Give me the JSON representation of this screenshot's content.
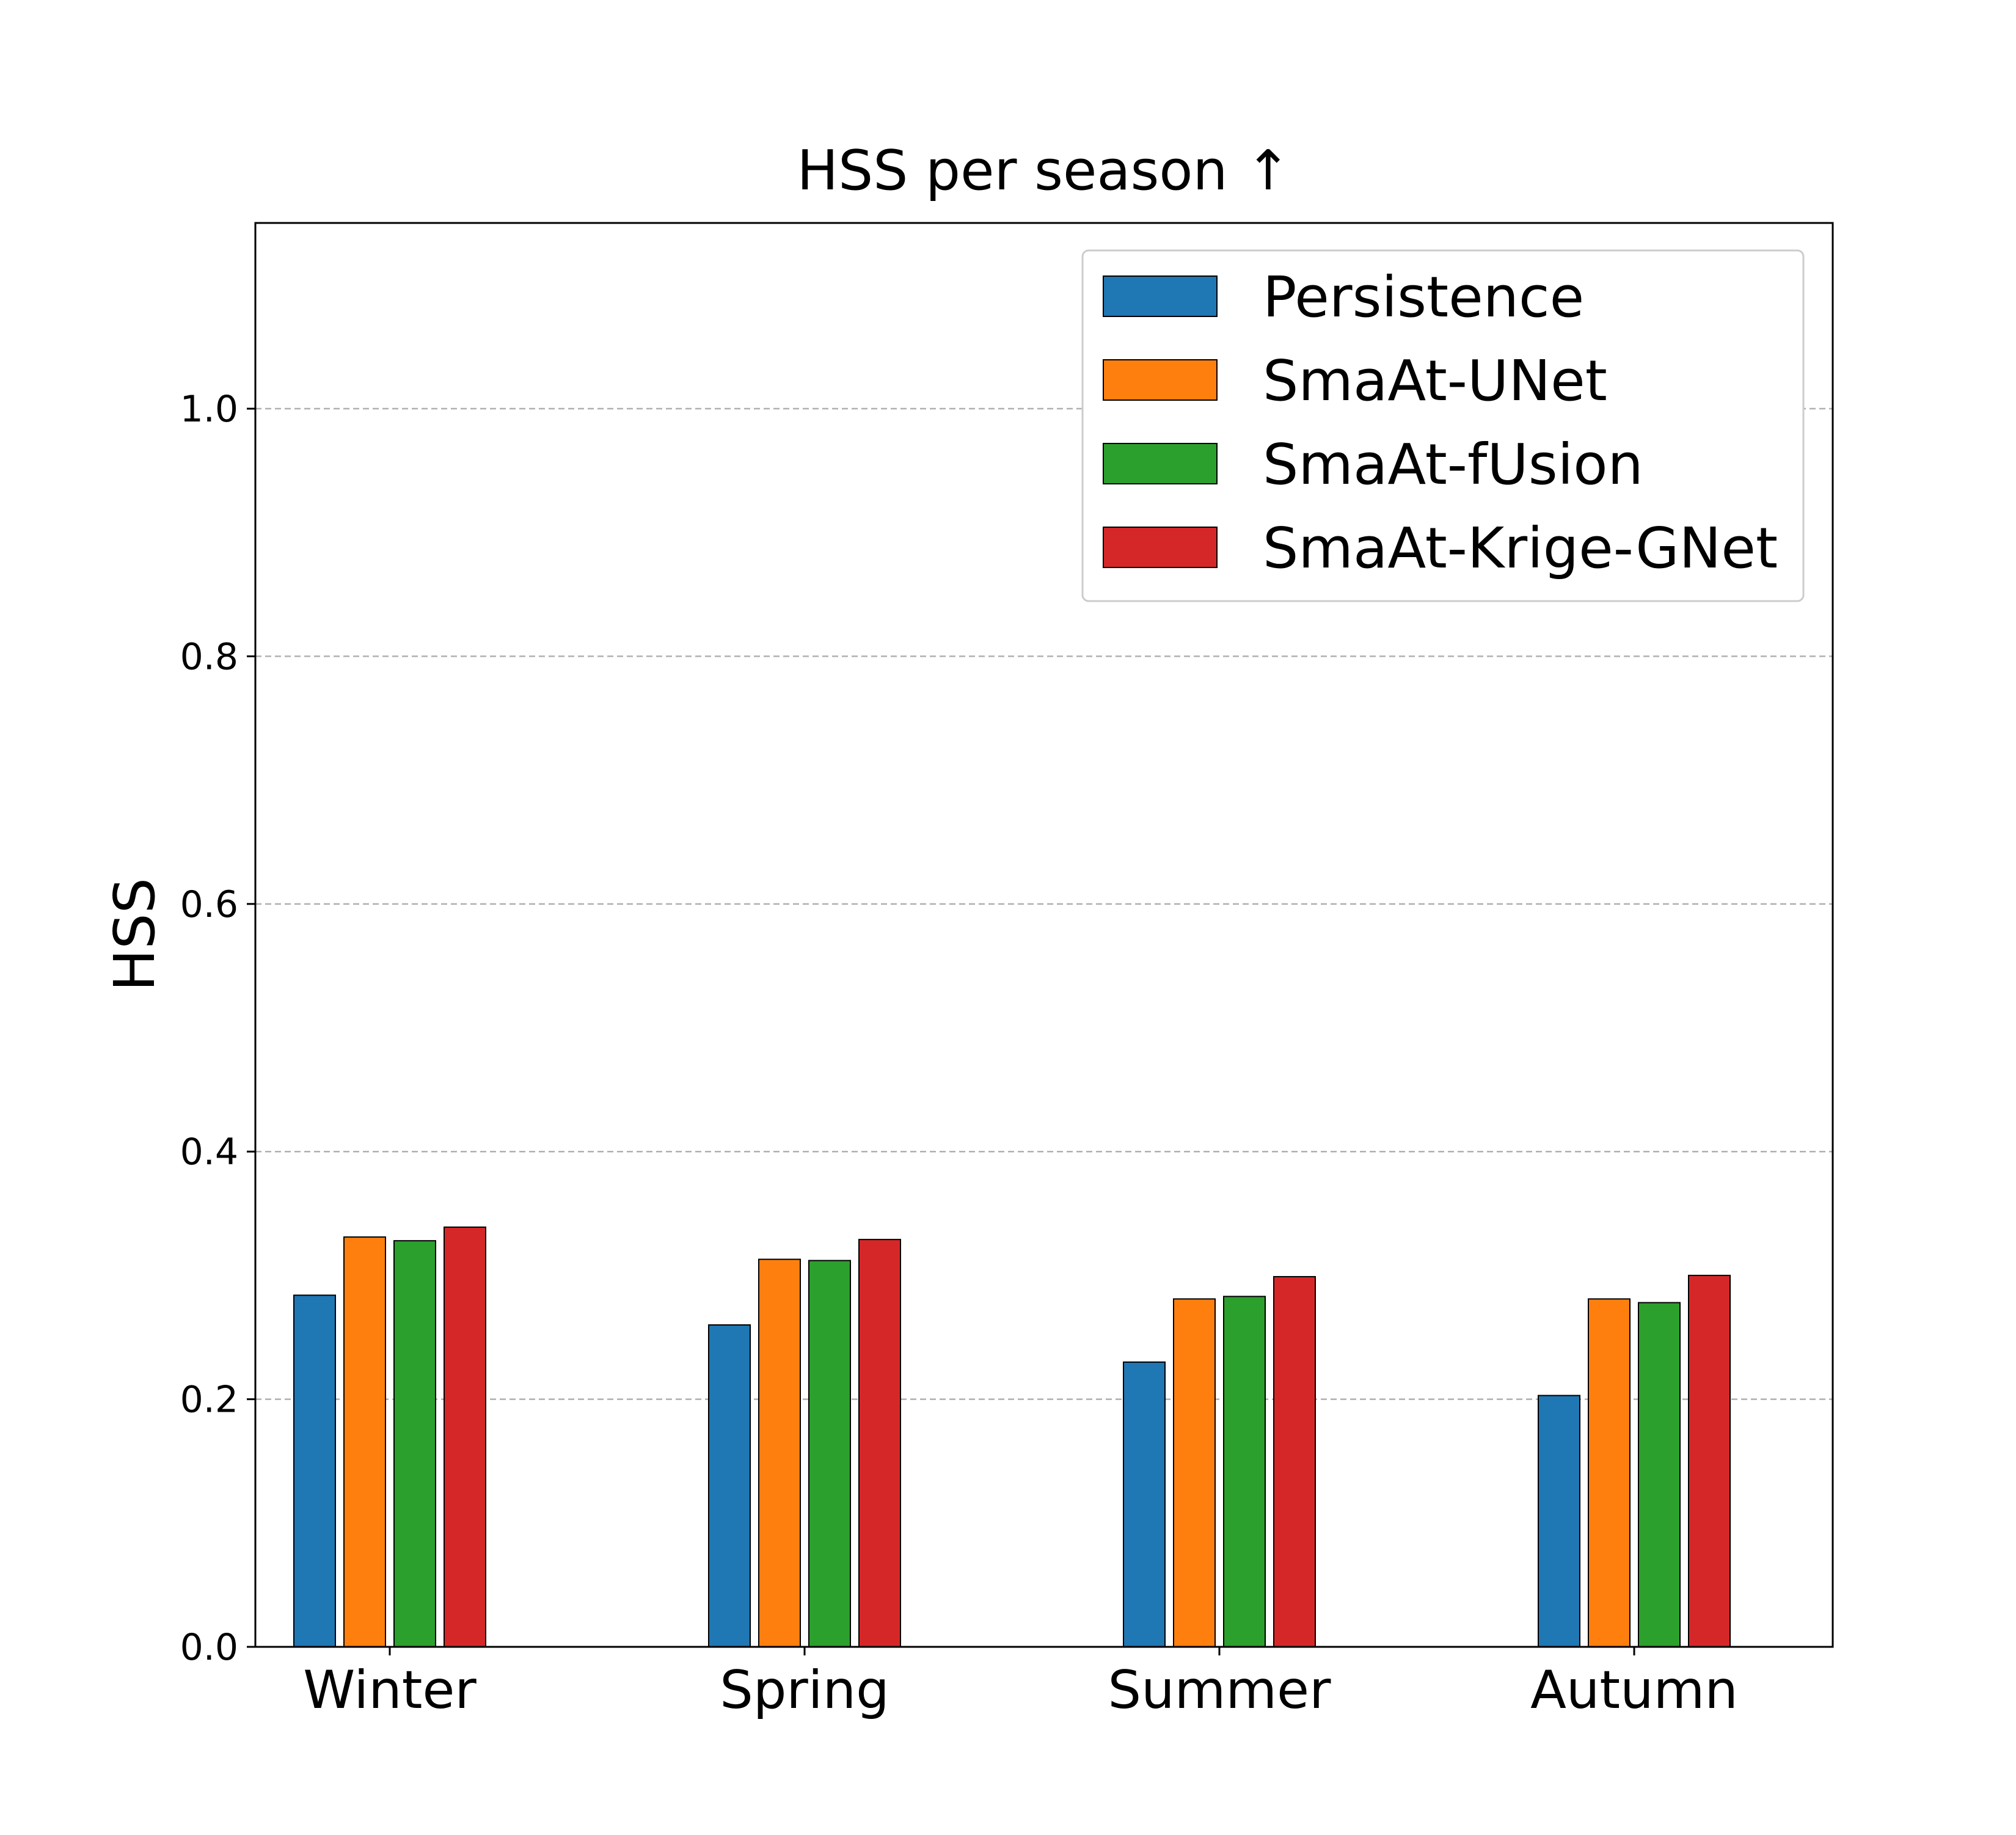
{
  "chart_data": {
    "type": "bar",
    "title": "HSS per season ↑",
    "xlabel": "",
    "ylabel": "HSS",
    "ylim": [
      0.0,
      1.15
    ],
    "yticks": [
      "0.0",
      "0.2",
      "0.4",
      "0.6",
      "0.8",
      "1.0"
    ],
    "ytick_values": [
      0.0,
      0.2,
      0.4,
      0.6,
      0.8,
      1.0
    ],
    "grid": "y-dashed",
    "legend_position": "top-right",
    "categories": [
      "Winter",
      "Spring",
      "Summer",
      "Autumn"
    ],
    "series": [
      {
        "name": "Persistence",
        "color": "#1f77b4",
        "values": [
          0.284,
          0.26,
          0.23,
          0.203
        ]
      },
      {
        "name": "SmaAt-UNet",
        "color": "#ff7f0e",
        "values": [
          0.331,
          0.313,
          0.281,
          0.281
        ]
      },
      {
        "name": "SmaAt-fUsion",
        "color": "#2ca02c",
        "values": [
          0.328,
          0.312,
          0.283,
          0.278
        ]
      },
      {
        "name": "SmaAt-Krige-GNet",
        "color": "#d62728",
        "values": [
          0.339,
          0.329,
          0.299,
          0.3
        ]
      }
    ]
  }
}
